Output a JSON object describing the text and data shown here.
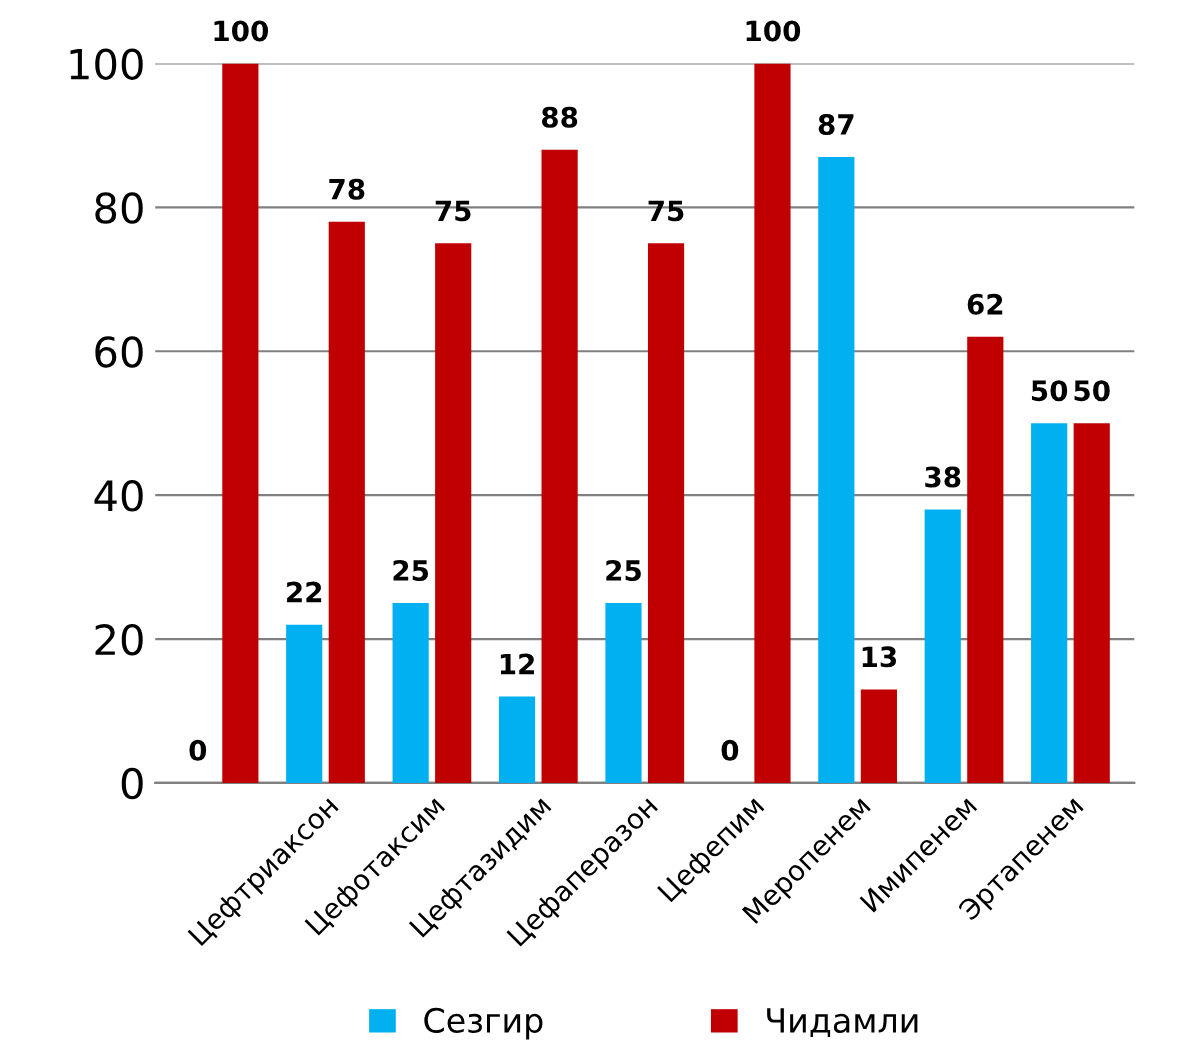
{
  "chart_data": {
    "type": "bar",
    "categories": [
      null,
      "Цефтриаксон",
      "Цефотаксим",
      "Цефтазидим",
      "Цефаперазон",
      "Цефепим",
      "Меропенем",
      "Имипенем",
      "Эртапенем"
    ],
    "series": [
      {
        "name": "Сезгир",
        "color": "#00b0f0",
        "values": [
          0,
          22,
          25,
          12,
          25,
          0,
          87,
          38,
          50
        ]
      },
      {
        "name": "Чидамли",
        "color": "#c00000",
        "values": [
          100,
          78,
          75,
          88,
          75,
          100,
          13,
          62,
          50
        ]
      }
    ],
    "ylim": [
      0,
      100
    ],
    "yticks": [
      0,
      20,
      40,
      60,
      80,
      100
    ],
    "grid": "y",
    "legend": "bottom",
    "data_labels": true
  }
}
